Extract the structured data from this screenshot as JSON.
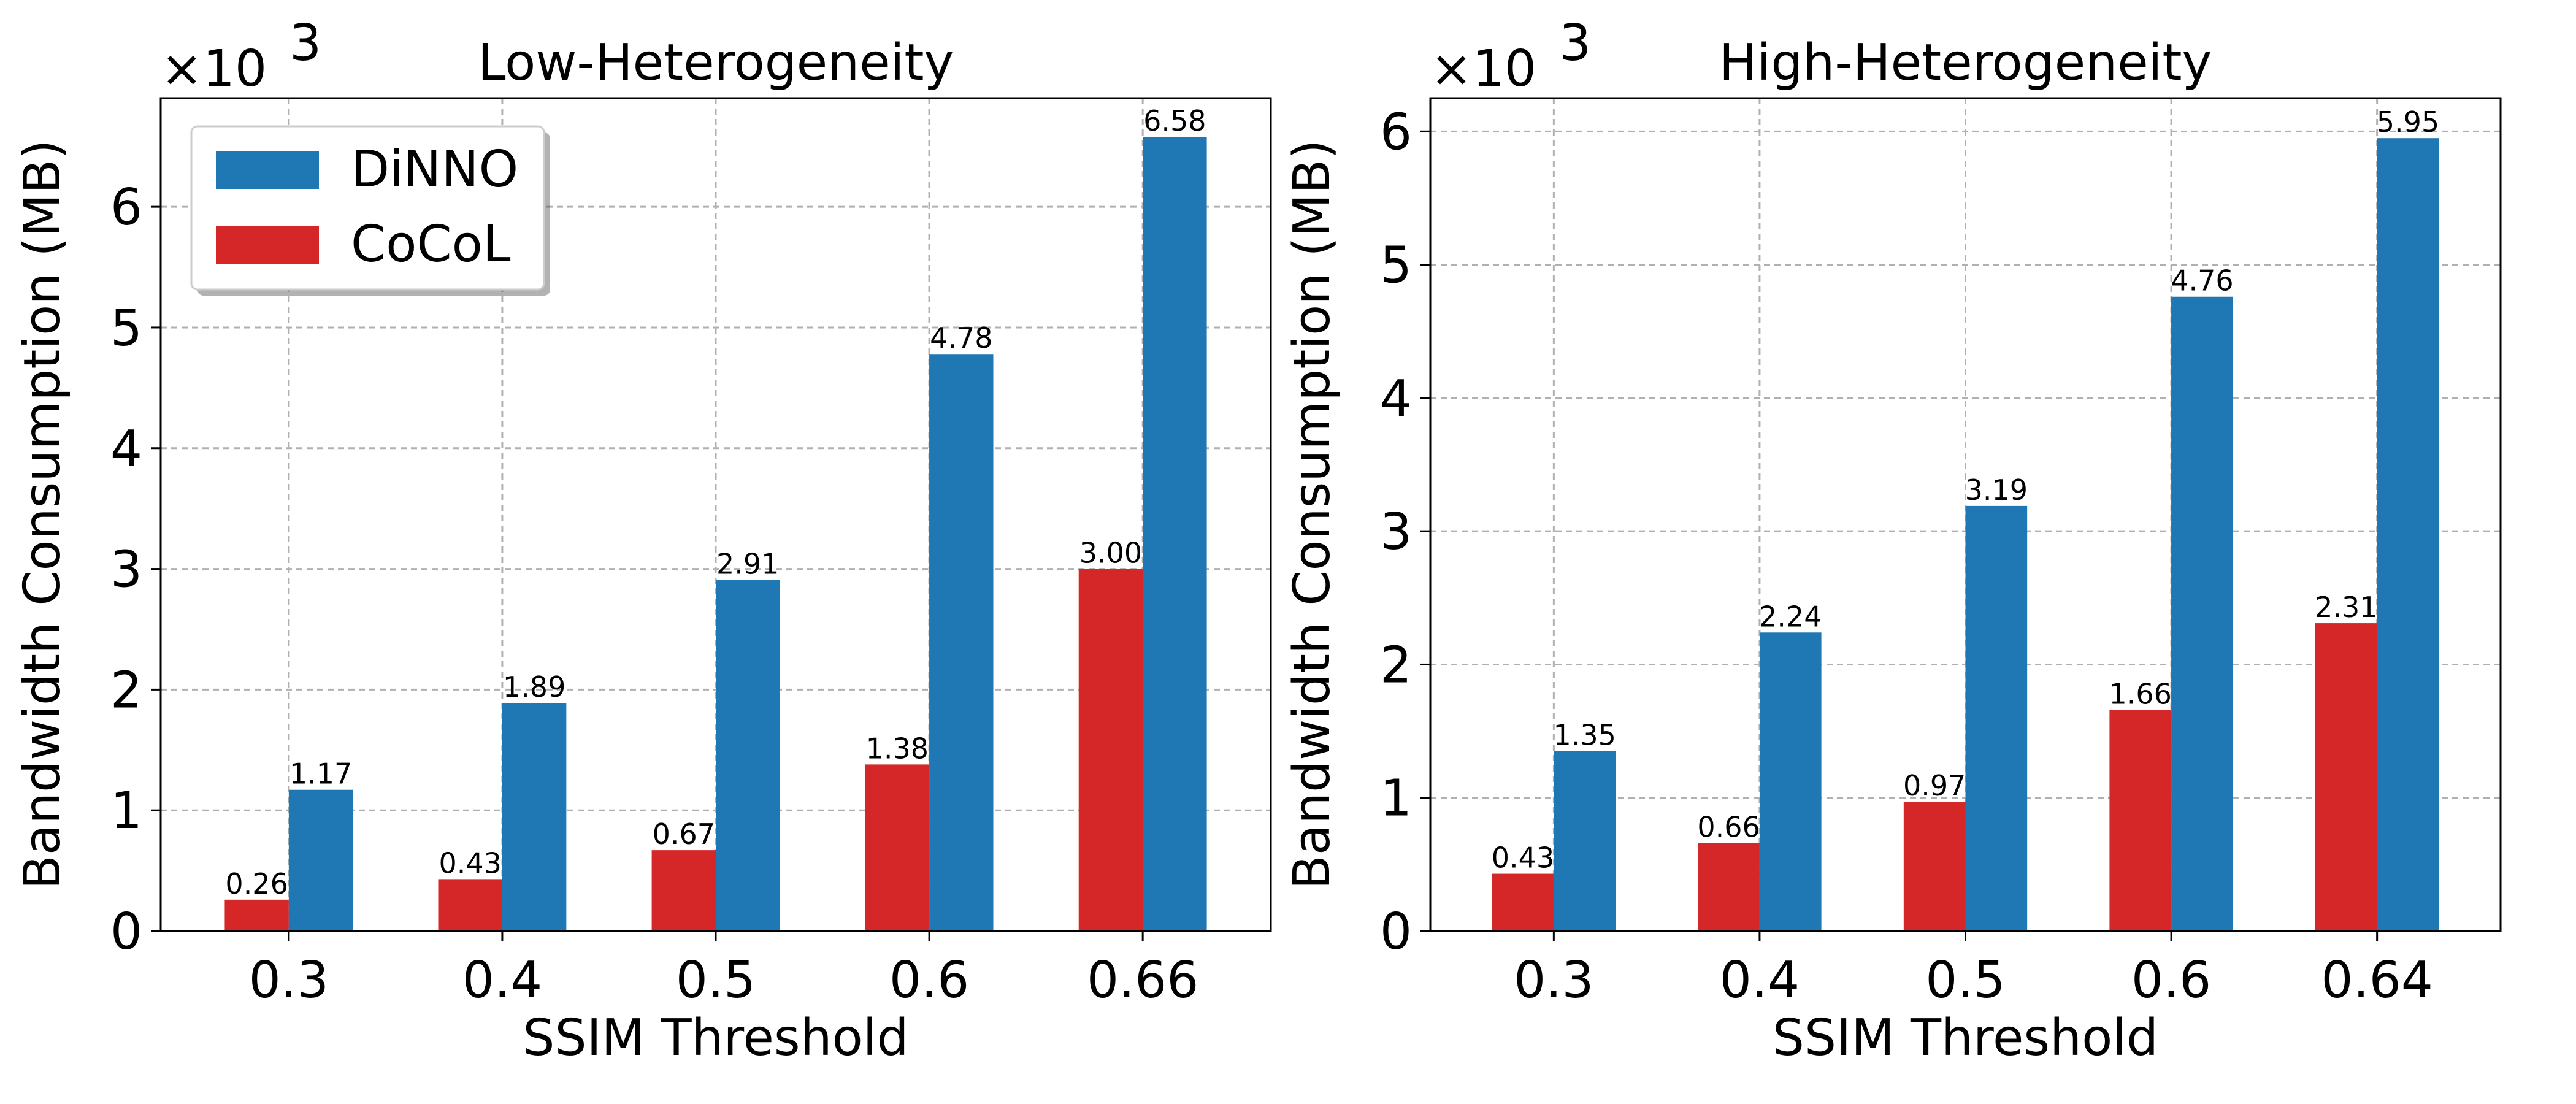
{
  "chart_data": [
    {
      "type": "bar",
      "title": "Low-Heterogeneity",
      "xlabel": "SSIM Threshold",
      "ylabel": "Bandwidth Consumption (MB)",
      "scale_label": "×10",
      "scale_exponent": "3",
      "categories": [
        "0.3",
        "0.4",
        "0.5",
        "0.6",
        "0.66"
      ],
      "ylim": [
        0,
        6.9
      ],
      "yticks": [
        "0",
        "1",
        "2",
        "3",
        "4",
        "5",
        "6"
      ],
      "grid": true,
      "legend_position": "top-left",
      "series": [
        {
          "name": "DiNNO",
          "color": "#1f77b4",
          "values": [
            1.17,
            1.89,
            2.91,
            4.78,
            6.58
          ],
          "labels": [
            "1.17",
            "1.89",
            "2.91",
            "4.78",
            "6.58"
          ]
        },
        {
          "name": "CoCoL",
          "color": "#d62728",
          "values": [
            0.26,
            0.43,
            0.67,
            1.38,
            3.0
          ],
          "labels": [
            "0.26",
            "0.43",
            "0.67",
            "1.38",
            "3.00"
          ]
        }
      ]
    },
    {
      "type": "bar",
      "title": "High-Heterogeneity",
      "xlabel": "SSIM Threshold",
      "ylabel": "Bandwidth Consumption (MB)",
      "scale_label": "×10",
      "scale_exponent": "3",
      "categories": [
        "0.3",
        "0.4",
        "0.5",
        "0.6",
        "0.64"
      ],
      "ylim": [
        0,
        6.25
      ],
      "yticks": [
        "0",
        "1",
        "2",
        "3",
        "4",
        "5",
        "6"
      ],
      "grid": true,
      "legend_position": "none",
      "series": [
        {
          "name": "DiNNO",
          "color": "#1f77b4",
          "values": [
            1.35,
            2.24,
            3.19,
            4.76,
            5.95
          ],
          "labels": [
            "1.35",
            "2.24",
            "3.19",
            "4.76",
            "5.95"
          ]
        },
        {
          "name": "CoCoL",
          "color": "#d62728",
          "values": [
            0.43,
            0.66,
            0.97,
            1.66,
            2.31
          ],
          "labels": [
            "0.43",
            "0.66",
            "0.97",
            "1.66",
            "2.31"
          ]
        }
      ]
    }
  ]
}
